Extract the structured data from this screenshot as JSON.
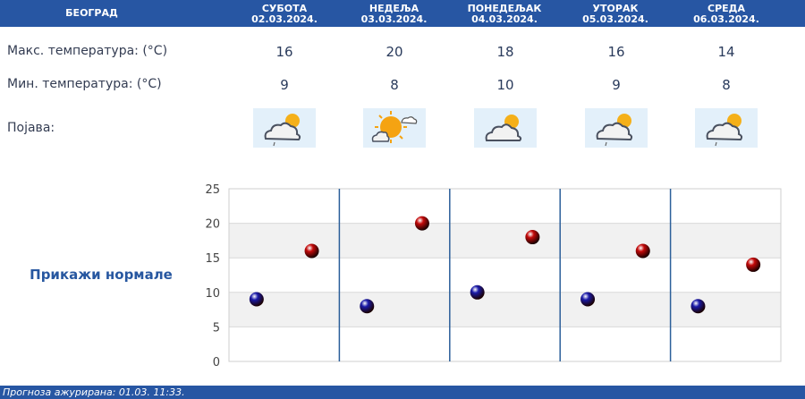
{
  "header": {
    "city": "БЕОГРАД",
    "days": [
      {
        "name": "СУБОТА",
        "date": "02.03.2024."
      },
      {
        "name": "НЕДЕЉА",
        "date": "03.03.2024."
      },
      {
        "name": "ПОНЕДЕЉАК",
        "date": "04.03.2024."
      },
      {
        "name": "УТОРАК",
        "date": "05.03.2024."
      },
      {
        "name": "СРЕДА",
        "date": "06.03.2024."
      }
    ]
  },
  "rows": {
    "max_label": "Макс. температура: (°C)",
    "min_label": "Мин. температура: (°C)",
    "phen_label": "Појава:"
  },
  "max_temps": [
    "16",
    "20",
    "18",
    "16",
    "14"
  ],
  "min_temps": [
    "9",
    "8",
    "10",
    "9",
    "8"
  ],
  "icons": [
    "cloud-sun-rain-icon",
    "sun-cloud-icon",
    "cloud-sun-icon",
    "cloud-sun-rain-icon",
    "cloud-sun-rain-icon"
  ],
  "normals_link": "Прикажи нормале",
  "footer": "Прогноза ажурирана:  01.03.  11:33.",
  "chart_data": {
    "type": "scatter",
    "ylim": [
      0,
      25
    ],
    "yticks": [
      "0",
      "5",
      "10",
      "15",
      "20",
      "25"
    ],
    "categories": [
      "СУБОТА",
      "НЕДЕЉА",
      "ПОНЕДЕЉАК",
      "УТОРАК",
      "СРЕДА"
    ],
    "series": [
      {
        "values": [
          9,
          8,
          10,
          9,
          8
        ],
        "color": "#1a1aa8"
      },
      {
        "values": [
          16,
          20,
          18,
          16,
          14
        ],
        "color": "#c40a0a"
      }
    ]
  }
}
